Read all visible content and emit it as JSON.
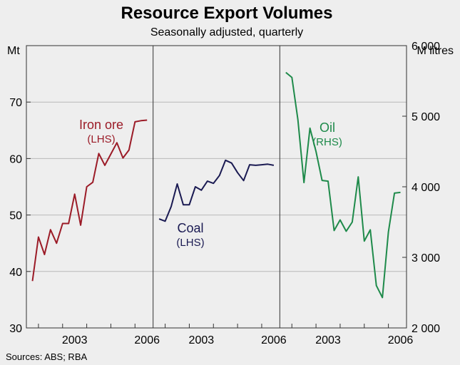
{
  "chart_data": {
    "type": "line",
    "title": "Resource Export Volumes",
    "subtitle": "Seasonally adjusted, quarterly",
    "left_axis": {
      "unit": "Mt",
      "range": [
        30,
        80
      ],
      "ticks": [
        30,
        40,
        50,
        60,
        70
      ],
      "tick_labels": [
        "30",
        "40",
        "50",
        "60",
        "70"
      ]
    },
    "right_axis": {
      "unit": "M litres",
      "range": [
        2000,
        6000
      ],
      "ticks": [
        2000,
        3000,
        4000,
        5000,
        6000
      ],
      "tick_labels": [
        "2 000",
        "3 000",
        "4 000",
        "5 000",
        "6 000"
      ]
    },
    "x_ticks": [
      2003,
      2006
    ],
    "x_tick_labels": [
      "2003",
      "2006"
    ],
    "gridlines": true,
    "source": "Sources: ABS; RBA",
    "panels": [
      {
        "series": "Iron ore",
        "axis": "left",
        "label_line1": "Iron ore",
        "label_line2": "(LHS)",
        "color": "#9b1b27",
        "x_start": 2001.5,
        "x_end": 2006.75,
        "x": [
          2001.75,
          2002.0,
          2002.25,
          2002.5,
          2002.75,
          2003.0,
          2003.25,
          2003.5,
          2003.75,
          2004.0,
          2004.25,
          2004.5,
          2004.75,
          2005.0,
          2005.25,
          2005.5,
          2005.75,
          2006.0,
          2006.25,
          2006.5
        ],
        "values": [
          38.3,
          46.1,
          43.0,
          47.4,
          45.0,
          48.5,
          48.5,
          53.7,
          48.2,
          55.0,
          55.8,
          60.9,
          58.8,
          60.8,
          62.8,
          60.1,
          61.5,
          66.5,
          66.7,
          66.8
        ]
      },
      {
        "series": "Coal",
        "axis": "left",
        "label_line1": "Coal",
        "label_line2": "(LHS)",
        "color": "#1a1a52",
        "x_start": 2001.5,
        "x_end": 2006.75,
        "x": [
          2001.75,
          2002.0,
          2002.25,
          2002.5,
          2002.75,
          2003.0,
          2003.25,
          2003.5,
          2003.75,
          2004.0,
          2004.25,
          2004.5,
          2004.75,
          2005.0,
          2005.25,
          2005.5,
          2005.75,
          2006.0,
          2006.25,
          2006.5
        ],
        "values": [
          49.3,
          48.9,
          51.5,
          55.5,
          51.8,
          51.8,
          55.0,
          54.4,
          56.0,
          55.6,
          57.0,
          59.7,
          59.2,
          57.5,
          56.1,
          58.9,
          58.8,
          58.9,
          59.0,
          58.8
        ]
      },
      {
        "series": "Oil",
        "axis": "right",
        "label_line1": "Oil",
        "label_line2": "(RHS)",
        "color": "#1e8a4a",
        "x_start": 2001.5,
        "x_end": 2006.75,
        "x": [
          2001.75,
          2002.0,
          2002.25,
          2002.5,
          2002.75,
          2003.0,
          2003.25,
          2003.5,
          2003.75,
          2004.0,
          2004.25,
          2004.5,
          2004.75,
          2005.0,
          2005.25,
          2005.5,
          2005.75,
          2006.0,
          2006.25,
          2006.5
        ],
        "values": [
          5620,
          5550,
          4950,
          4060,
          4830,
          4500,
          4090,
          4080,
          3380,
          3530,
          3370,
          3500,
          4140,
          3230,
          3390,
          2600,
          2430,
          3360,
          3910,
          3920
        ]
      }
    ]
  }
}
